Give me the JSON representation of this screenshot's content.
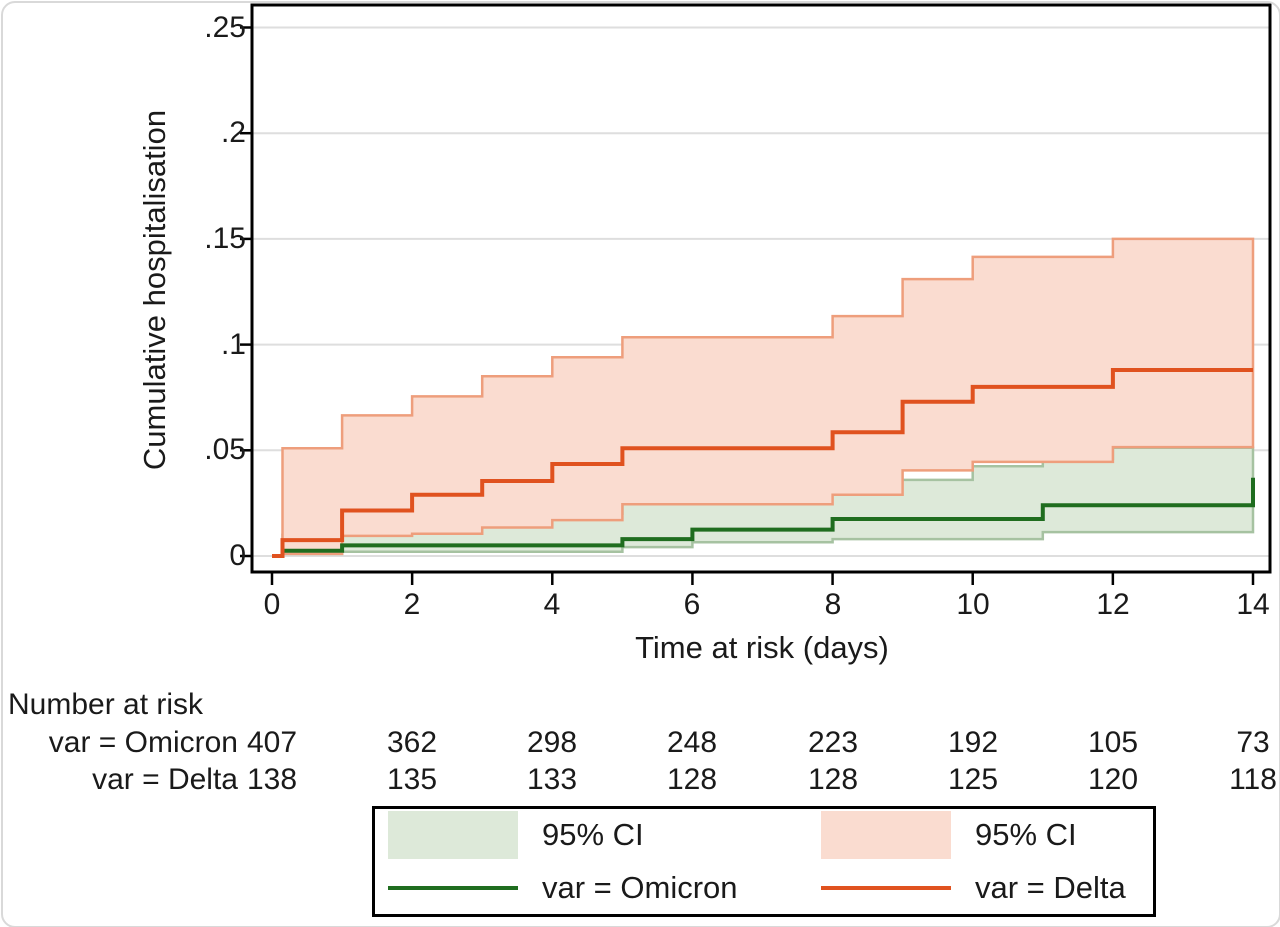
{
  "figure": {
    "y_axis": {
      "title": "Cumulative hospitalisation",
      "ticks": [
        {
          "label": "0",
          "value": 0
        },
        {
          "label": ".05",
          "value": 0.05
        },
        {
          "label": ".1",
          "value": 0.1
        },
        {
          "label": ".15",
          "value": 0.15
        },
        {
          "label": ".2",
          "value": 0.2
        },
        {
          "label": ".25",
          "value": 0.25
        }
      ]
    },
    "x_axis": {
      "title": "Time at risk (days)",
      "ticks": [
        {
          "label": "0",
          "value": 0
        },
        {
          "label": "2",
          "value": 2
        },
        {
          "label": "4",
          "value": 4
        },
        {
          "label": "6",
          "value": 6
        },
        {
          "label": "8",
          "value": 8
        },
        {
          "label": "10",
          "value": 10
        },
        {
          "label": "12",
          "value": 12
        },
        {
          "label": "14",
          "value": 14
        }
      ]
    },
    "risk_table": {
      "heading": "Number at risk",
      "columns": [
        0,
        2,
        4,
        6,
        8,
        10,
        12,
        14
      ],
      "rows": [
        {
          "label": "var = Omicron",
          "values": [
            "407",
            "362",
            "298",
            "248",
            "223",
            "192",
            "105",
            "73"
          ]
        },
        {
          "label": "var = Delta",
          "values": [
            "138",
            "135",
            "133",
            "128",
            "128",
            "125",
            "120",
            "118"
          ]
        }
      ]
    },
    "legend": {
      "items": [
        {
          "swatch": "area",
          "color_key": "omicron_fill",
          "label": "95% CI"
        },
        {
          "swatch": "area",
          "color_key": "delta_fill",
          "label": "95% CI"
        },
        {
          "swatch": "line",
          "color_key": "omicron_line",
          "label": "var = Omicron"
        },
        {
          "swatch": "line",
          "color_key": "delta_line",
          "label": "var = Delta"
        }
      ]
    },
    "colors": {
      "omicron_line": "#1f6d1f",
      "omicron_fill": "#dde9d9",
      "omicron_ci_edge": "#a6c2a1",
      "delta_line": "#e0521f",
      "delta_fill": "#fadcd0",
      "delta_ci_edge": "#ee9e7c",
      "grid": "#dedede",
      "frame": "#000000",
      "text": "#1a1a1a"
    }
  },
  "chart_data": {
    "type": "line",
    "subtype": "kaplan-meier-step",
    "title": "",
    "xlabel": "Time at risk (days)",
    "ylabel": "Cumulative hospitalisation",
    "xlim": [
      0,
      14
    ],
    "ylim": [
      0,
      0.25
    ],
    "grid": "horizontal",
    "legend_position": "bottom",
    "series": [
      {
        "name": "var = Omicron",
        "group": "omicron",
        "role": "estimate",
        "points": [
          [
            0,
            0
          ],
          [
            0.15,
            0.0025
          ],
          [
            1,
            0.005
          ],
          [
            5,
            0.008
          ],
          [
            6,
            0.0125
          ],
          [
            8,
            0.0175
          ],
          [
            11,
            0.024
          ],
          [
            14,
            0.037
          ]
        ]
      },
      {
        "name": "Omicron 95% CI upper",
        "group": "omicron",
        "role": "ci_upper",
        "points": [
          [
            0.15,
            0.01
          ],
          [
            1,
            0.0135
          ],
          [
            3,
            0.017
          ],
          [
            4,
            0.02
          ],
          [
            5,
            0.026
          ],
          [
            6,
            0.031
          ],
          [
            8,
            0.036
          ],
          [
            10,
            0.0425
          ],
          [
            11,
            0.046
          ],
          [
            12,
            0.0512
          ]
        ]
      },
      {
        "name": "Omicron 95% CI lower",
        "group": "omicron",
        "role": "ci_lower",
        "points": [
          [
            0.15,
            0.001
          ],
          [
            1,
            0.002
          ],
          [
            5,
            0.0042
          ],
          [
            6,
            0.0065
          ],
          [
            8,
            0.008
          ],
          [
            11,
            0.0113
          ],
          [
            14,
            0.0155
          ]
        ]
      },
      {
        "name": "var = Delta",
        "group": "delta",
        "role": "estimate",
        "points": [
          [
            0,
            0
          ],
          [
            0.15,
            0.0075
          ],
          [
            1,
            0.0215
          ],
          [
            2,
            0.029
          ],
          [
            3,
            0.0355
          ],
          [
            4,
            0.0435
          ],
          [
            5,
            0.051
          ],
          [
            8,
            0.0585
          ],
          [
            9,
            0.073
          ],
          [
            10,
            0.08
          ],
          [
            12,
            0.088
          ]
        ]
      },
      {
        "name": "Delta 95% CI upper",
        "group": "delta",
        "role": "ci_upper",
        "points": [
          [
            0.15,
            0.051
          ],
          [
            1,
            0.0665
          ],
          [
            2,
            0.0755
          ],
          [
            3,
            0.085
          ],
          [
            4,
            0.094
          ],
          [
            5,
            0.1035
          ],
          [
            8,
            0.1135
          ],
          [
            9,
            0.131
          ],
          [
            10,
            0.1415
          ],
          [
            12,
            0.15
          ]
        ]
      },
      {
        "name": "Delta 95% CI lower",
        "group": "delta",
        "role": "ci_lower",
        "points": [
          [
            0.15,
            0.001
          ],
          [
            1,
            0.0095
          ],
          [
            2,
            0.0105
          ],
          [
            3,
            0.0135
          ],
          [
            4,
            0.017
          ],
          [
            5,
            0.0245
          ],
          [
            8,
            0.029
          ],
          [
            9,
            0.0405
          ],
          [
            10,
            0.0445
          ],
          [
            12,
            0.0515
          ]
        ]
      }
    ],
    "at_risk": {
      "times": [
        0,
        2,
        4,
        6,
        8,
        10,
        12,
        14
      ],
      "omicron": [
        407,
        362,
        298,
        248,
        223,
        192,
        105,
        73
      ],
      "delta": [
        138,
        135,
        133,
        128,
        128,
        125,
        120,
        118
      ]
    }
  }
}
